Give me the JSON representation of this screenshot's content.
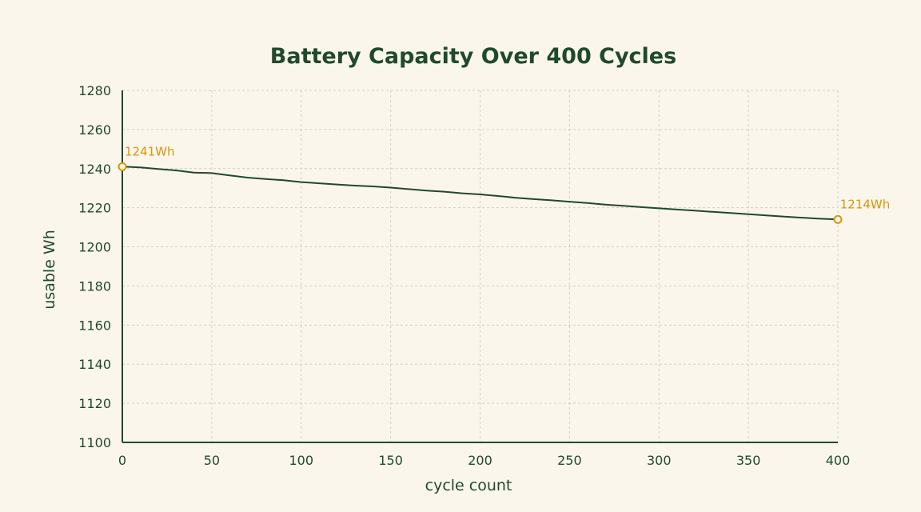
{
  "colors": {
    "background": "#fbf6ec",
    "text": "#1f4a2c",
    "line": "#1f4a2c",
    "accent": "#d9960a",
    "grid": "#cfcfc6"
  },
  "chart_data": {
    "type": "line",
    "title": "Battery Capacity Over 400 Cycles",
    "xlabel": "cycle count",
    "ylabel": "usable Wh",
    "xlim": [
      0,
      400
    ],
    "ylim": [
      1100,
      1280
    ],
    "x_ticks": [
      0,
      50,
      100,
      150,
      200,
      250,
      300,
      350,
      400
    ],
    "y_ticks": [
      1100,
      1120,
      1140,
      1160,
      1180,
      1200,
      1220,
      1240,
      1260,
      1280
    ],
    "grid": true,
    "series": [
      {
        "x": [
          0,
          10,
          20,
          30,
          40,
          50,
          60,
          70,
          80,
          90,
          100,
          110,
          120,
          130,
          140,
          150,
          160,
          170,
          180,
          190,
          200,
          210,
          220,
          230,
          240,
          250,
          260,
          270,
          280,
          290,
          300,
          310,
          320,
          330,
          340,
          350,
          360,
          370,
          380,
          390,
          400
        ],
        "y": [
          1241,
          1240.6,
          1239.8,
          1239.1,
          1238,
          1237.7,
          1236.5,
          1235.4,
          1234.7,
          1234.1,
          1233.1,
          1232.5,
          1231.9,
          1231.3,
          1230.9,
          1230.3,
          1229.5,
          1228.8,
          1228.2,
          1227.4,
          1226.8,
          1226,
          1225.1,
          1224.4,
          1223.8,
          1223.1,
          1222.4,
          1221.6,
          1221,
          1220.3,
          1219.7,
          1219.1,
          1218.5,
          1217.9,
          1217.3,
          1216.7,
          1216.1,
          1215.5,
          1214.9,
          1214.4,
          1214
        ]
      }
    ],
    "annotations": [
      {
        "x": 0,
        "y": 1241,
        "label": "1241Wh"
      },
      {
        "x": 400,
        "y": 1214,
        "label": "1214Wh"
      }
    ]
  }
}
